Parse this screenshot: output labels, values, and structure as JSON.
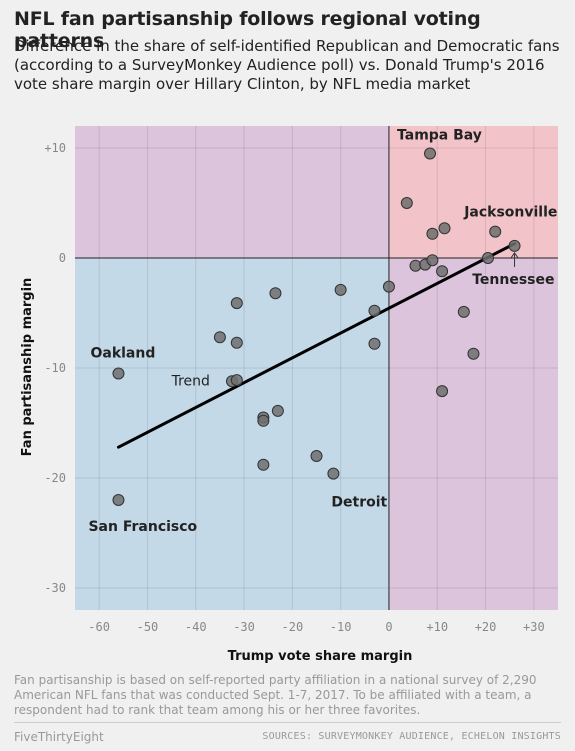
{
  "header": {
    "title": "NFL fan partisanship follows regional voting patterns",
    "subtitle": "Difference in the share of self-identified Republican and Democratic fans (according to a SurveyMonkey Audience poll) vs. Donald Trump's 2016 vote share margin over Hillary Clinton, by NFL media market"
  },
  "footer": {
    "note": "Fan partisanship is based on self-reported party affiliation in a national survey of 2,290 American NFL fans that was conducted Sept. 1-7, 2017. To be affiliated with a team, a respondent had to rank that team among his or her three favorites.",
    "brand": "FiveThirtyEight",
    "sources": "SOURCES: SURVEYMONKEY AUDIENCE, ECHELON INSIGHTS"
  },
  "colors": {
    "blue_quadrant": "#c3d9e8",
    "purple_quadrant": "#dcc4dc",
    "red_quadrant": "#f2c4c9",
    "point_fill": "#6e6e6e",
    "trend_line": "#000000"
  },
  "chart_data": {
    "type": "scatter",
    "xlabel": "Trump vote share margin",
    "ylabel": "Fan partisanship margin",
    "xlim": [
      -65,
      35
    ],
    "ylim": [
      -32,
      12
    ],
    "x_ticks": [
      -60,
      -50,
      -40,
      -30,
      -20,
      -10,
      0,
      10,
      20,
      30
    ],
    "x_tick_labels": [
      "-60",
      "-50",
      "-40",
      "-30",
      "-20",
      "-10",
      "0",
      "+10",
      "+20",
      "+30"
    ],
    "y_ticks": [
      10,
      0,
      -10,
      -20,
      -30
    ],
    "y_tick_labels": [
      "+10",
      "0",
      "-10",
      "-20",
      "-30"
    ],
    "grid": true,
    "points": [
      {
        "x": -56,
        "y": -10.5,
        "label": "Oakland"
      },
      {
        "x": -56,
        "y": -22,
        "label": "San Francisco"
      },
      {
        "x": -35,
        "y": -7.2,
        "label": ""
      },
      {
        "x": -31.5,
        "y": -4.1,
        "label": ""
      },
      {
        "x": -31.5,
        "y": -7.7,
        "label": ""
      },
      {
        "x": -32.5,
        "y": -11.2,
        "label": ""
      },
      {
        "x": -31.5,
        "y": -11.1,
        "label": ""
      },
      {
        "x": -26,
        "y": -14.5,
        "label": ""
      },
      {
        "x": -26,
        "y": -14.8,
        "label": ""
      },
      {
        "x": -26,
        "y": -18.8,
        "label": ""
      },
      {
        "x": -23.5,
        "y": -3.2,
        "label": ""
      },
      {
        "x": -23,
        "y": -13.9,
        "label": ""
      },
      {
        "x": -15,
        "y": -18,
        "label": ""
      },
      {
        "x": -11.5,
        "y": -19.6,
        "label": "Detroit"
      },
      {
        "x": -10,
        "y": -2.9,
        "label": ""
      },
      {
        "x": -3,
        "y": -4.8,
        "label": ""
      },
      {
        "x": -3,
        "y": -7.8,
        "label": ""
      },
      {
        "x": 0,
        "y": -2.6,
        "label": ""
      },
      {
        "x": 3.7,
        "y": 5,
        "label": ""
      },
      {
        "x": 5.5,
        "y": -0.7,
        "label": ""
      },
      {
        "x": 7.5,
        "y": -0.6,
        "label": ""
      },
      {
        "x": 8.5,
        "y": 9.5,
        "label": "Tampa Bay"
      },
      {
        "x": 9,
        "y": -0.2,
        "label": ""
      },
      {
        "x": 9,
        "y": 2.2,
        "label": ""
      },
      {
        "x": 11,
        "y": -1.2,
        "label": ""
      },
      {
        "x": 11.5,
        "y": 2.7,
        "label": ""
      },
      {
        "x": 11,
        "y": -12.1,
        "label": ""
      },
      {
        "x": 15.5,
        "y": -4.9,
        "label": ""
      },
      {
        "x": 17.5,
        "y": -8.7,
        "label": ""
      },
      {
        "x": 20.5,
        "y": 0,
        "label": ""
      },
      {
        "x": 22,
        "y": 2.4,
        "label": "Jacksonville"
      },
      {
        "x": 26,
        "y": 1.1,
        "label": "Tennessee"
      }
    ],
    "trend": {
      "label": "Trend",
      "x": [
        -56,
        26
      ],
      "y": [
        -17.2,
        1.3
      ]
    }
  }
}
